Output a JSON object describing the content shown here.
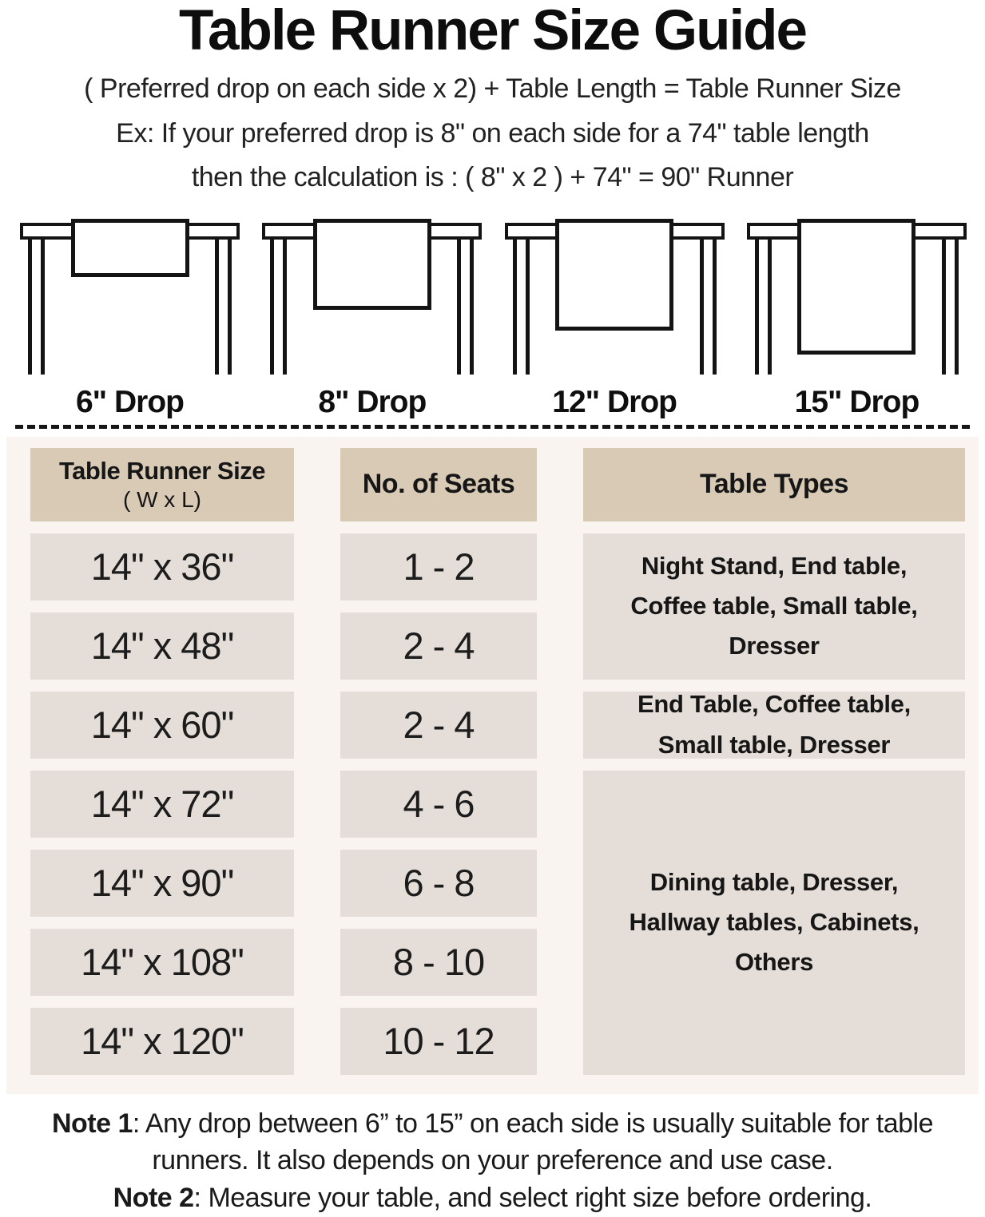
{
  "header": {
    "title": "Table Runner Size Guide",
    "formula": "( Preferred drop on each side x 2) + Table Length = Table Runner Size",
    "example1": "Ex: If your preferred drop is 8\" on each side for a 74\" table length",
    "example2": "then the calculation is : ( 8\" x 2 ) + 74\" = 90\" Runner"
  },
  "diagrams": [
    {
      "label": "6\" Drop",
      "drop_inches": 6
    },
    {
      "label": "8\" Drop",
      "drop_inches": 8
    },
    {
      "label": "12\" Drop",
      "drop_inches": 12
    },
    {
      "label": "15\" Drop",
      "drop_inches": 15
    }
  ],
  "table": {
    "columns": [
      {
        "title": "Table Runner Size",
        "subtitle": "( W x L)"
      },
      {
        "title": "No. of Seats"
      },
      {
        "title": "Table Types"
      }
    ],
    "rows": [
      {
        "size": "14\" x 36\"",
        "seats": "1 - 2"
      },
      {
        "size": "14\" x 48\"",
        "seats": "2 - 4"
      },
      {
        "size": "14\" x 60\"",
        "seats": "2 - 4"
      },
      {
        "size": "14\" x 72\"",
        "seats": "4 - 6"
      },
      {
        "size": "14\" x 90\"",
        "seats": "6 - 8"
      },
      {
        "size": "14\" x 108\"",
        "seats": "8 - 10"
      },
      {
        "size": "14\" x 120\"",
        "seats": "10 - 12"
      }
    ],
    "types": [
      {
        "text": "Night Stand, End table, Coffee table, Small table, Dresser",
        "spans_rows": "1-2"
      },
      {
        "text": "End Table, Coffee table, Small table, Dresser",
        "spans_rows": "3"
      },
      {
        "text": "Dining table, Dresser, Hallway tables, Cabinets, Others",
        "spans_rows": "4-7"
      }
    ]
  },
  "notes": [
    {
      "label": "Note 1",
      "text": ": Any drop between 6” to 15” on each side is usually suitable for table runners. It also depends on your preference and use case."
    },
    {
      "label": "Note 2",
      "text": ": Measure your table, and select right size before ordering."
    }
  ],
  "colors": {
    "header_cell": "#d9cab6",
    "body_cell": "#e5ddd7",
    "section_bg": "#faf4f0",
    "line": "#141414",
    "text": "#161616"
  }
}
